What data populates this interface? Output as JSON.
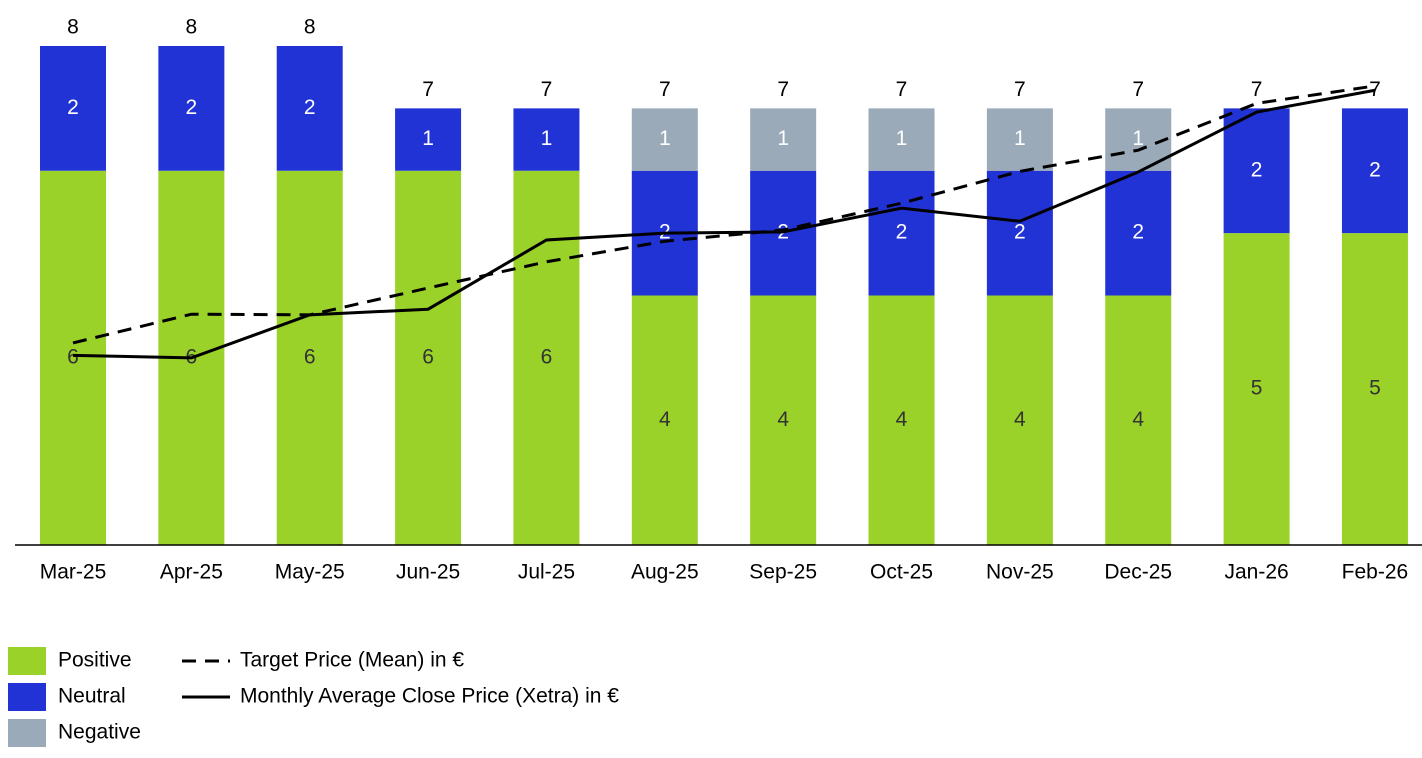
{
  "chart_data": {
    "type": "bar",
    "stacked": true,
    "categories": [
      "Mar-25",
      "Apr-25",
      "May-25",
      "Jun-25",
      "Jul-25",
      "Aug-25",
      "Sep-25",
      "Oct-25",
      "Nov-25",
      "Dec-25",
      "Jan-26",
      "Feb-26"
    ],
    "series": [
      {
        "name": "Positive",
        "color": "#9ad22a",
        "label_color": "#333333",
        "values": [
          6,
          6,
          6,
          6,
          6,
          4,
          4,
          4,
          4,
          4,
          5,
          5
        ]
      },
      {
        "name": "Neutral",
        "color": "#2233d6",
        "label_color": "#ffffff",
        "values": [
          2,
          2,
          2,
          1,
          1,
          2,
          2,
          2,
          2,
          2,
          2,
          2
        ]
      },
      {
        "name": "Negative",
        "color": "#9aaab8",
        "label_color": "#ffffff",
        "values": [
          0,
          0,
          0,
          0,
          0,
          1,
          1,
          1,
          1,
          1,
          0,
          0
        ]
      },
      {
        "name": "Target Price (Mean) in €",
        "type": "line",
        "dash": true,
        "axis": "y2",
        "color": "#000000",
        "values": [
          3.24,
          3.7,
          3.69,
          4.12,
          4.54,
          4.87,
          5.05,
          5.48,
          5.99,
          6.33,
          7.08,
          7.36
        ]
      },
      {
        "name": "Monthly Average Close Price (Xetra) in €",
        "type": "line",
        "axis": "y2",
        "color": "#000000",
        "values": [
          3.04,
          3.0,
          3.69,
          3.78,
          4.89,
          5.0,
          5.02,
          5.4,
          5.19,
          5.98,
          6.94,
          7.29
        ]
      }
    ],
    "totals": [
      8,
      8,
      8,
      7,
      7,
      7,
      7,
      7,
      7,
      7,
      7,
      7
    ],
    "ylim": [
      0,
      8
    ],
    "y2lim": [
      0,
      8
    ]
  }
}
